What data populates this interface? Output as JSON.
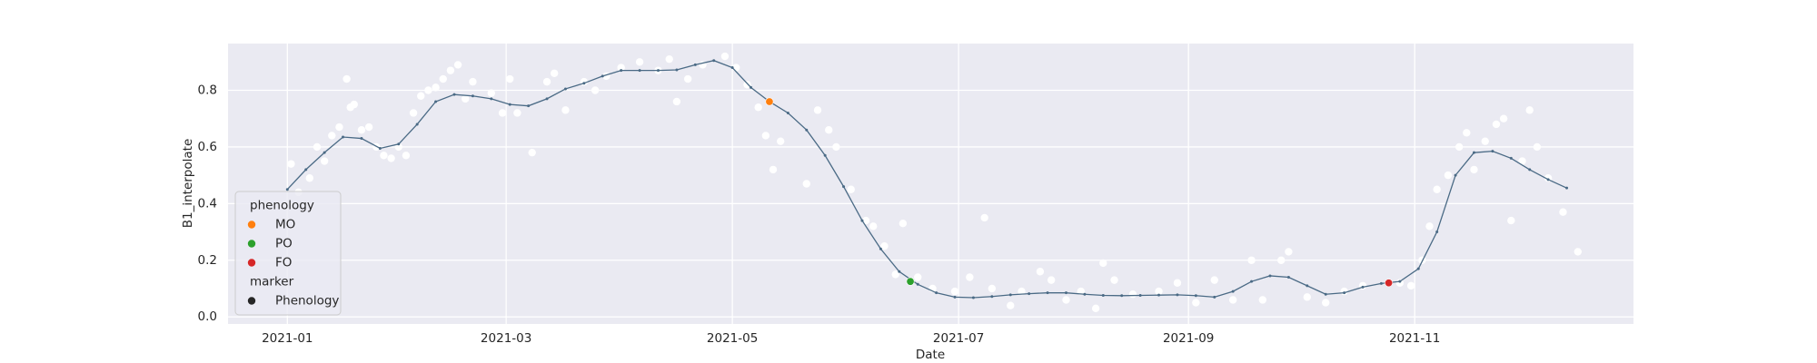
{
  "chart_data": {
    "type": "scatter",
    "xlabel": "Date",
    "ylabel": "B1_interpolate",
    "xlim": [
      -16,
      363
    ],
    "xticks": [
      {
        "value": 0,
        "label": "2021-01"
      },
      {
        "value": 59,
        "label": "2021-03"
      },
      {
        "value": 120,
        "label": "2021-05"
      },
      {
        "value": 181,
        "label": "2021-07"
      },
      {
        "value": 243,
        "label": "2021-09"
      },
      {
        "value": 304,
        "label": "2021-11"
      }
    ],
    "ylim": [
      -0.025,
      0.965
    ],
    "yticks": [
      {
        "value": 0,
        "label": "0.0"
      },
      0.2,
      0.4,
      0.6,
      0.8
    ],
    "grid": true,
    "legend": "lower left",
    "legend_title": "phenology",
    "marker_legend_title": "marker",
    "marker_legend_label": "Phenology",
    "marker_legend_color": "#262626",
    "series": [
      {
        "mode": "markers",
        "color": "#ffffff",
        "x": [
          1,
          3,
          6,
          8,
          10,
          12,
          14,
          16,
          17,
          18,
          20,
          22,
          24,
          26,
          28,
          30,
          32,
          34,
          36,
          38,
          40,
          42,
          44,
          46,
          48,
          50,
          55,
          58,
          60,
          62,
          66,
          70,
          72,
          75,
          80,
          83,
          86,
          90,
          95,
          100,
          103,
          105,
          108,
          112,
          118,
          121,
          124,
          127,
          129,
          131,
          133,
          140,
          143,
          146,
          148,
          152,
          156,
          158,
          161,
          164,
          166,
          170,
          174,
          180,
          184,
          188,
          190,
          195,
          198,
          203,
          206,
          210,
          214,
          218,
          220,
          223,
          228,
          235,
          240,
          245,
          250,
          255,
          260,
          263,
          268,
          270,
          275,
          280,
          285,
          290,
          300,
          303,
          306,
          308,
          310,
          313,
          316,
          318,
          320,
          323,
          326,
          328,
          330,
          333,
          335,
          337,
          340,
          344,
          348
        ],
        "values": [
          0.54,
          0.44,
          0.49,
          0.6,
          0.55,
          0.64,
          0.67,
          0.84,
          0.74,
          0.75,
          0.66,
          0.67,
          0.6,
          0.57,
          0.56,
          0.6,
          0.57,
          0.72,
          0.78,
          0.8,
          0.81,
          0.84,
          0.87,
          0.89,
          0.77,
          0.83,
          0.79,
          0.72,
          0.84,
          0.72,
          0.58,
          0.83,
          0.86,
          0.73,
          0.83,
          0.8,
          0.85,
          0.88,
          0.9,
          0.87,
          0.91,
          0.76,
          0.84,
          0.89,
          0.92,
          0.88,
          0.82,
          0.74,
          0.64,
          0.52,
          0.62,
          0.47,
          0.73,
          0.66,
          0.6,
          0.45,
          0.34,
          0.32,
          0.25,
          0.15,
          0.33,
          0.14,
          0.1,
          0.09,
          0.14,
          0.35,
          0.1,
          0.04,
          0.09,
          0.16,
          0.13,
          0.06,
          0.09,
          0.03,
          0.19,
          0.13,
          0.08,
          0.09,
          0.12,
          0.05,
          0.13,
          0.06,
          0.2,
          0.06,
          0.2,
          0.23,
          0.07,
          0.05,
          0.09,
          0.11,
          0.12,
          0.11,
          0.2,
          0.32,
          0.45,
          0.5,
          0.6,
          0.65,
          0.52,
          0.62,
          0.68,
          0.7,
          0.34,
          0.55,
          0.73,
          0.6,
          0.49,
          0.37,
          0.23
        ]
      },
      {
        "mode": "lines+markers",
        "color": "#4a6a85",
        "x": [
          0,
          5,
          10,
          15,
          20,
          25,
          30,
          35,
          40,
          45,
          50,
          55,
          60,
          65,
          70,
          75,
          80,
          85,
          90,
          95,
          100,
          105,
          110,
          115,
          120,
          125,
          130,
          135,
          140,
          145,
          150,
          155,
          160,
          165,
          170,
          175,
          180,
          185,
          190,
          195,
          200,
          205,
          210,
          215,
          220,
          225,
          230,
          235,
          240,
          245,
          250,
          255,
          260,
          265,
          270,
          275,
          280,
          285,
          290,
          295,
          300,
          305,
          310,
          315,
          320,
          325,
          330,
          335,
          340,
          345
        ],
        "values": [
          0.45,
          0.52,
          0.58,
          0.635,
          0.63,
          0.595,
          0.61,
          0.68,
          0.76,
          0.785,
          0.78,
          0.77,
          0.75,
          0.745,
          0.77,
          0.805,
          0.825,
          0.85,
          0.87,
          0.87,
          0.87,
          0.872,
          0.89,
          0.905,
          0.88,
          0.81,
          0.76,
          0.72,
          0.66,
          0.57,
          0.46,
          0.34,
          0.24,
          0.16,
          0.115,
          0.085,
          0.07,
          0.068,
          0.072,
          0.078,
          0.082,
          0.085,
          0.085,
          0.08,
          0.076,
          0.075,
          0.076,
          0.077,
          0.078,
          0.075,
          0.07,
          0.09,
          0.125,
          0.145,
          0.14,
          0.11,
          0.08,
          0.085,
          0.105,
          0.118,
          0.125,
          0.17,
          0.3,
          0.5,
          0.58,
          0.585,
          0.56,
          0.52,
          0.485,
          0.455
        ]
      },
      {
        "mode": "markers",
        "name": "MO",
        "color": "#ff7f0e",
        "x": [
          130
        ],
        "values": [
          0.76
        ]
      },
      {
        "mode": "markers",
        "name": "PO",
        "color": "#2ca02c",
        "x": [
          168
        ],
        "values": [
          0.125
        ]
      },
      {
        "mode": "markers",
        "name": "FO",
        "color": "#d62728",
        "x": [
          297
        ],
        "values": [
          0.12
        ]
      }
    ]
  }
}
